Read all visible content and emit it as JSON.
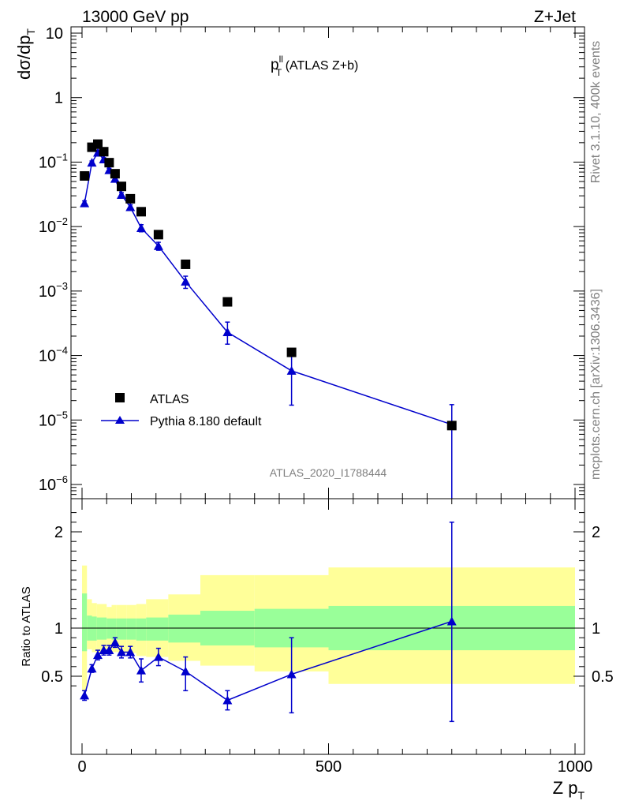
{
  "header": {
    "energy_label": "13000 GeV pp",
    "process_label": "Z+Jet"
  },
  "side": {
    "rivet_label": "Rivet 3.1.10,  400k events",
    "site_label": "mcplots.cern.ch [arXiv:1306.3436]"
  },
  "main_title": {
    "base": "p",
    "sup": "ll",
    "sub": "T",
    "rest": " (ATLAS Z+b)"
  },
  "analysis_id": "ATLAS_2020_I1788444",
  "colors": {
    "pythia": "#0000cc",
    "band_inner": "#99ff99",
    "band_outer": "#ffff99",
    "data": "#000000"
  },
  "chart_data": [
    {
      "type": "scatter",
      "ylabel": {
        "base": "dσ/dp",
        "sub": "T"
      },
      "yscale": "log",
      "xlim": [
        -20,
        1000
      ],
      "ylim": [
        5e-07,
        15
      ],
      "y_ticks": [
        {
          "v": 10,
          "label": "10"
        },
        {
          "v": 1,
          "label": "1"
        },
        {
          "v": 0.1,
          "label": "10",
          "exp": "−1"
        },
        {
          "v": 0.01,
          "label": "10",
          "exp": "−2"
        },
        {
          "v": 0.001,
          "label": "10",
          "exp": "−3"
        },
        {
          "v": 0.0001,
          "label": "10",
          "exp": "−4"
        },
        {
          "v": 1e-05,
          "label": "10",
          "exp": "−5"
        },
        {
          "v": 1e-06,
          "label": "10",
          "exp": "−6"
        }
      ],
      "legend": {
        "position": "bottom-left",
        "entries": [
          "ATLAS",
          "Pythia 8.180 default"
        ]
      },
      "series": [
        {
          "name": "ATLAS",
          "marker": "square",
          "x": [
            5,
            20,
            32,
            44,
            55,
            67,
            80,
            98,
            120,
            155,
            210,
            295,
            425,
            750
          ],
          "y": [
            0.061,
            0.17,
            0.19,
            0.145,
            0.098,
            0.066,
            0.042,
            0.027,
            0.017,
            0.0075,
            0.0026,
            0.00068,
            0.000112,
            8.2e-06
          ]
        },
        {
          "name": "Pythia 8.180 default",
          "marker": "triangle",
          "x": [
            5,
            20,
            32,
            44,
            55,
            67,
            80,
            98,
            120,
            155,
            210,
            295,
            425,
            750
          ],
          "y": [
            0.023,
            0.098,
            0.14,
            0.11,
            0.075,
            0.055,
            0.031,
            0.02,
            0.0095,
            0.005,
            0.0014,
            0.00023,
            5.8e-05,
            8.5e-06
          ],
          "err_lo": [
            0.002,
            0.006,
            0.008,
            0.007,
            0.005,
            0.004,
            0.0025,
            0.0018,
            0.0012,
            0.0007,
            0.0003,
            8e-05,
            4.1e-05,
            8.4e-06
          ],
          "err_hi": [
            0.002,
            0.006,
            0.008,
            0.007,
            0.005,
            0.004,
            0.0025,
            0.0018,
            0.0012,
            0.0007,
            0.0003,
            0.0001,
            4e-05,
            8.8e-06
          ]
        }
      ]
    },
    {
      "type": "line",
      "ylabel": "Ratio to ATLAS",
      "xlabel": {
        "base": "Z p",
        "sub": "T"
      },
      "xlim": [
        -20,
        1000
      ],
      "ylim": [
        0.35,
        2.25
      ],
      "x_ticks": [
        0,
        500,
        1000
      ],
      "y_ticks": [
        0.5,
        1,
        2
      ],
      "reference": 1,
      "bands": {
        "edges": [
          0,
          10,
          20,
          30,
          40,
          50,
          60,
          70,
          90,
          110,
          130,
          175,
          240,
          350,
          500,
          1000
        ],
        "inner_lo": [
          0.76,
          0.87,
          0.87,
          0.88,
          0.88,
          0.89,
          0.88,
          0.88,
          0.88,
          0.87,
          0.87,
          0.85,
          0.82,
          0.8,
          0.77
        ],
        "inner_hi": [
          1.36,
          1.13,
          1.12,
          1.11,
          1.11,
          1.1,
          1.1,
          1.1,
          1.1,
          1.1,
          1.11,
          1.14,
          1.18,
          1.2,
          1.23
        ],
        "outer_lo": [
          0.35,
          0.78,
          0.75,
          0.75,
          0.75,
          0.76,
          0.75,
          0.75,
          0.74,
          0.71,
          0.7,
          0.66,
          0.61,
          0.55,
          0.42
        ],
        "outer_hi": [
          1.65,
          1.3,
          1.26,
          1.25,
          1.25,
          1.22,
          1.24,
          1.24,
          1.24,
          1.25,
          1.3,
          1.35,
          1.55,
          1.55,
          1.63
        ]
      },
      "series": [
        {
          "name": "Pythia 8.180 default",
          "x": [
            5,
            20,
            32,
            44,
            55,
            67,
            80,
            98,
            120,
            155,
            210,
            295,
            425,
            750
          ],
          "y": [
            0.3,
            0.58,
            0.72,
            0.77,
            0.77,
            0.85,
            0.75,
            0.75,
            0.56,
            0.7,
            0.55,
            0.25,
            0.52,
            1.07
          ],
          "err_lo": [
            0.05,
            0.04,
            0.05,
            0.05,
            0.05,
            0.05,
            0.06,
            0.06,
            0.12,
            0.09,
            0.2,
            0.1,
            0.4,
            1.04
          ],
          "err_hi": [
            0.05,
            0.04,
            0.05,
            0.05,
            0.05,
            0.05,
            0.06,
            0.06,
            0.12,
            0.09,
            0.15,
            0.1,
            0.38,
            1.03
          ]
        }
      ]
    }
  ]
}
